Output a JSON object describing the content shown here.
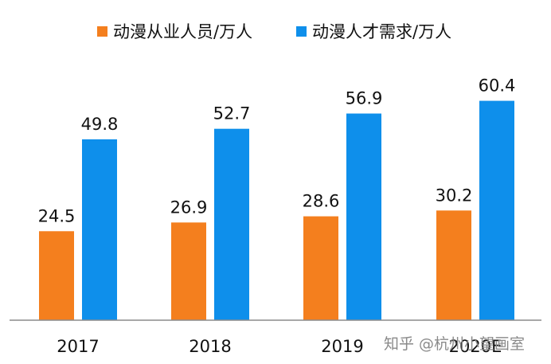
{
  "chart_data": {
    "type": "bar",
    "categories": [
      "2017",
      "2018",
      "2019",
      "2020E"
    ],
    "series": [
      {
        "name": "动漫从业人员/万人",
        "values": [
          24.5,
          26.9,
          28.6,
          30.2
        ],
        "color": "#F47F1E"
      },
      {
        "name": "动漫人才需求/万人",
        "values": [
          49.8,
          52.7,
          56.9,
          60.4
        ],
        "color": "#0E8FEB"
      }
    ],
    "data_labels": {
      "series_0": [
        "24.5",
        "26.9",
        "28.6",
        "30.2"
      ],
      "series_1": [
        "49.8",
        "52.7",
        "56.9",
        "60.4"
      ]
    },
    "title": "",
    "xlabel": "",
    "ylabel": "",
    "ylim": [
      0,
      70
    ],
    "grid": false,
    "legend_position": "top-center"
  },
  "watermark": {
    "text": "知乎 @杭州小望画室"
  }
}
